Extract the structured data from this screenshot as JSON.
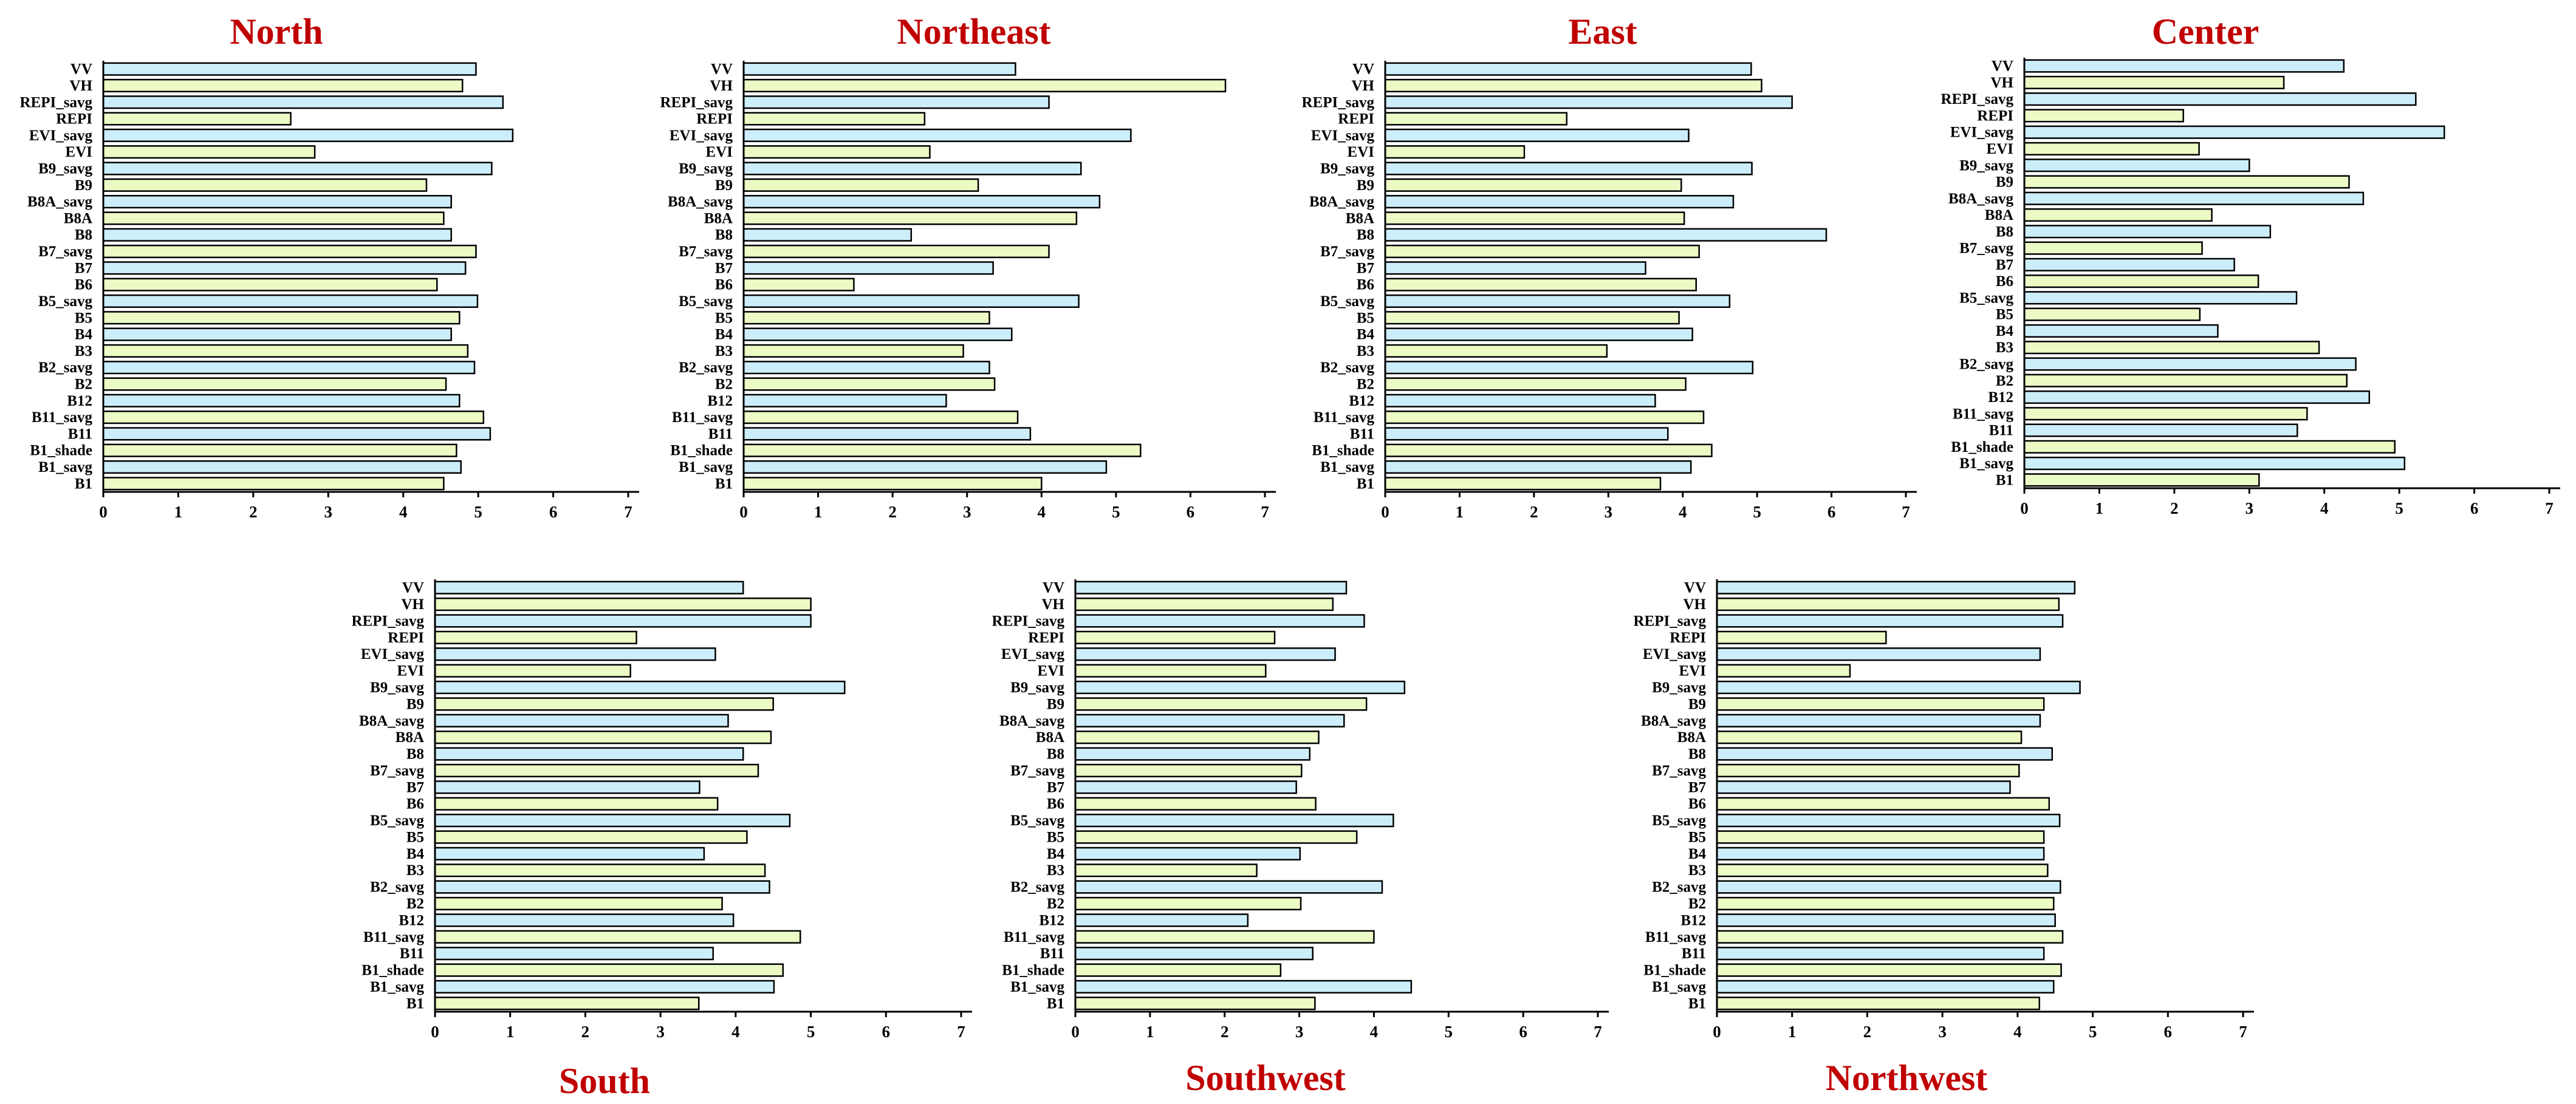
{
  "colors": {
    "bar_blue": "#cceefa",
    "bar_green": "#ecfac5",
    "title_red": "#c00000",
    "axis": "#000000"
  },
  "chart_data": [
    {
      "type": "bar",
      "orientation": "horizontal",
      "title": "North",
      "title_position": "top",
      "xlim": [
        0,
        7
      ],
      "xticks": [
        0,
        1,
        2,
        3,
        4,
        5,
        6,
        7
      ],
      "categories": [
        "VV",
        "VH",
        "REPI_savg",
        "REPI",
        "EVI_savg",
        "EVI",
        "B9_savg",
        "B9",
        "B8A_savg",
        "B8A",
        "B8",
        "B7_savg",
        "B7",
        "B6",
        "B5_savg",
        "B5",
        "B4",
        "B3",
        "B2_savg",
        "B2",
        "B12",
        "B11_savg",
        "B11",
        "B1_shade",
        "B1_savg",
        "B1"
      ],
      "values": [
        4.97,
        4.79,
        5.33,
        2.5,
        5.46,
        2.82,
        5.18,
        4.31,
        4.64,
        4.54,
        4.64,
        4.97,
        4.83,
        4.45,
        4.99,
        4.75,
        4.64,
        4.86,
        4.95,
        4.57,
        4.75,
        5.07,
        5.16,
        4.71,
        4.77,
        4.54
      ]
    },
    {
      "type": "bar",
      "orientation": "horizontal",
      "title": "Northeast",
      "title_position": "top",
      "xlim": [
        0,
        7
      ],
      "xticks": [
        0,
        1,
        2,
        3,
        4,
        5,
        6,
        7
      ],
      "categories": [
        "VV",
        "VH",
        "REPI_savg",
        "REPI",
        "EVI_savg",
        "EVI",
        "B9_savg",
        "B9",
        "B8A_savg",
        "B8A",
        "B8",
        "B7_savg",
        "B7",
        "B6",
        "B5_savg",
        "B5",
        "B4",
        "B3",
        "B2_savg",
        "B2",
        "B12",
        "B11_savg",
        "B11",
        "B1_shade",
        "B1_savg",
        "B1"
      ],
      "values": [
        3.65,
        6.47,
        4.1,
        2.43,
        5.2,
        2.5,
        4.53,
        3.15,
        4.78,
        4.47,
        2.25,
        4.1,
        3.35,
        1.48,
        4.5,
        3.3,
        3.6,
        2.95,
        3.3,
        3.37,
        2.72,
        3.68,
        3.85,
        5.33,
        4.87,
        4.0
      ]
    },
    {
      "type": "bar",
      "orientation": "horizontal",
      "title": "East",
      "title_position": "top",
      "xlim": [
        0,
        7
      ],
      "xticks": [
        0,
        1,
        2,
        3,
        4,
        5,
        6,
        7
      ],
      "categories": [
        "VV",
        "VH",
        "REPI_savg",
        "REPI",
        "EVI_savg",
        "EVI",
        "B9_savg",
        "B9",
        "B8A_savg",
        "B8A",
        "B8",
        "B7_savg",
        "B7",
        "B6",
        "B5_savg",
        "B5",
        "B4",
        "B3",
        "B2_savg",
        "B2",
        "B12",
        "B11_savg",
        "B11",
        "B1_shade",
        "B1_savg",
        "B1"
      ],
      "values": [
        4.92,
        5.06,
        5.47,
        2.44,
        4.08,
        1.87,
        4.93,
        3.98,
        4.68,
        4.02,
        5.93,
        4.22,
        3.5,
        4.18,
        4.63,
        3.95,
        4.13,
        2.98,
        4.94,
        4.04,
        3.63,
        4.28,
        3.8,
        4.39,
        4.11,
        3.7
      ]
    },
    {
      "type": "bar",
      "orientation": "horizontal",
      "title": "Center",
      "title_position": "top",
      "xlim": [
        0,
        7
      ],
      "xticks": [
        0,
        1,
        2,
        3,
        4,
        5,
        6,
        7
      ],
      "categories": [
        "VV",
        "VH",
        "REPI_savg",
        "REPI",
        "EVI_savg",
        "EVI",
        "B9_savg",
        "B9",
        "B8A_savg",
        "B8A",
        "B8",
        "B7_savg",
        "B7",
        "B6",
        "B5_savg",
        "B5",
        "B4",
        "B3",
        "B2_savg",
        "B2",
        "B12",
        "B11_savg",
        "B11",
        "B1_shade",
        "B1_savg",
        "B1"
      ],
      "values": [
        4.26,
        3.46,
        5.22,
        2.12,
        5.6,
        2.33,
        3.0,
        4.33,
        4.52,
        2.5,
        3.28,
        2.37,
        2.8,
        3.12,
        3.63,
        2.34,
        2.58,
        3.93,
        4.42,
        4.3,
        4.6,
        3.77,
        3.64,
        4.94,
        5.07,
        3.13
      ]
    },
    {
      "type": "bar",
      "orientation": "horizontal",
      "title": "South",
      "title_position": "bottom",
      "xlim": [
        0,
        7
      ],
      "xticks": [
        0,
        1,
        2,
        3,
        4,
        5,
        6,
        7
      ],
      "categories": [
        "VV",
        "VH",
        "REPI_savg",
        "REPI",
        "EVI_savg",
        "EVI",
        "B9_savg",
        "B9",
        "B8A_savg",
        "B8A",
        "B8",
        "B7_savg",
        "B7",
        "B6",
        "B5_savg",
        "B5",
        "B4",
        "B3",
        "B2_savg",
        "B2",
        "B12",
        "B11_savg",
        "B11",
        "B1_shade",
        "B1_savg",
        "B1"
      ],
      "values": [
        4.1,
        5.0,
        5.0,
        2.68,
        3.73,
        2.6,
        5.45,
        4.5,
        3.9,
        4.47,
        4.1,
        4.3,
        3.52,
        3.76,
        4.72,
        4.15,
        3.58,
        4.39,
        4.45,
        3.82,
        3.97,
        4.86,
        3.7,
        4.63,
        4.51,
        3.51
      ]
    },
    {
      "type": "bar",
      "orientation": "horizontal",
      "title": "Southwest",
      "title_position": "bottom",
      "xlim": [
        0,
        7
      ],
      "xticks": [
        0,
        1,
        2,
        3,
        4,
        5,
        6,
        7
      ],
      "categories": [
        "VV",
        "VH",
        "REPI_savg",
        "REPI",
        "EVI_savg",
        "EVI",
        "B9_savg",
        "B9",
        "B8A_savg",
        "B8A",
        "B8",
        "B7_savg",
        "B7",
        "B6",
        "B5_savg",
        "B5",
        "B4",
        "B3",
        "B2_savg",
        "B2",
        "B12",
        "B11_savg",
        "B11",
        "B1_shade",
        "B1_savg",
        "B1"
      ],
      "values": [
        3.63,
        3.45,
        3.87,
        2.67,
        3.48,
        2.55,
        4.41,
        3.9,
        3.6,
        3.26,
        3.14,
        3.03,
        2.96,
        3.22,
        4.26,
        3.77,
        3.01,
        2.43,
        4.11,
        3.02,
        2.31,
        4.0,
        3.18,
        2.75,
        4.5,
        3.21
      ]
    },
    {
      "type": "bar",
      "orientation": "horizontal",
      "title": "Northwest",
      "title_position": "bottom",
      "xlim": [
        0,
        7
      ],
      "xticks": [
        0,
        1,
        2,
        3,
        4,
        5,
        6,
        7
      ],
      "categories": [
        "VV",
        "VH",
        "REPI_savg",
        "REPI",
        "EVI_savg",
        "EVI",
        "B9_savg",
        "B9",
        "B8A_savg",
        "B8A",
        "B8",
        "B7_savg",
        "B7",
        "B6",
        "B5_savg",
        "B5",
        "B4",
        "B3",
        "B2_savg",
        "B2",
        "B12",
        "B11_savg",
        "B11",
        "B1_shade",
        "B1_savg",
        "B1"
      ],
      "values": [
        4.76,
        4.55,
        4.6,
        2.25,
        4.3,
        1.77,
        4.83,
        4.35,
        4.3,
        4.05,
        4.46,
        4.02,
        3.9,
        4.42,
        4.56,
        4.35,
        4.35,
        4.4,
        4.57,
        4.48,
        4.5,
        4.6,
        4.35,
        4.58,
        4.48,
        4.29
      ]
    }
  ]
}
